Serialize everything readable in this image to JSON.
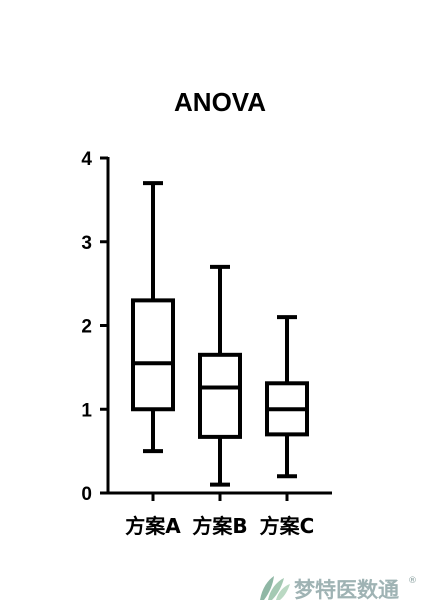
{
  "chart_data": {
    "type": "boxplot",
    "title": "ANOVA",
    "xlabel": "",
    "ylabel": "",
    "ylim": [
      0,
      4
    ],
    "yticks": [
      0,
      1,
      2,
      3,
      4
    ],
    "grid": false,
    "categories": [
      "方案A",
      "方案B",
      "方案C"
    ],
    "boxes": [
      {
        "name": "方案A",
        "min": 0.5,
        "q1": 1.0,
        "median": 1.55,
        "q3": 2.3,
        "max": 3.7
      },
      {
        "name": "方案B",
        "min": 0.1,
        "q1": 0.67,
        "median": 1.26,
        "q3": 1.65,
        "max": 2.7
      },
      {
        "name": "方案C",
        "min": 0.2,
        "q1": 0.7,
        "median": 1.0,
        "q3": 1.31,
        "max": 2.1
      }
    ],
    "stroke_color": "#000000"
  },
  "watermark": {
    "text": "梦特医数通",
    "mark": "®",
    "icon": "leaf-logo-icon",
    "color": "#7f9a9b"
  }
}
